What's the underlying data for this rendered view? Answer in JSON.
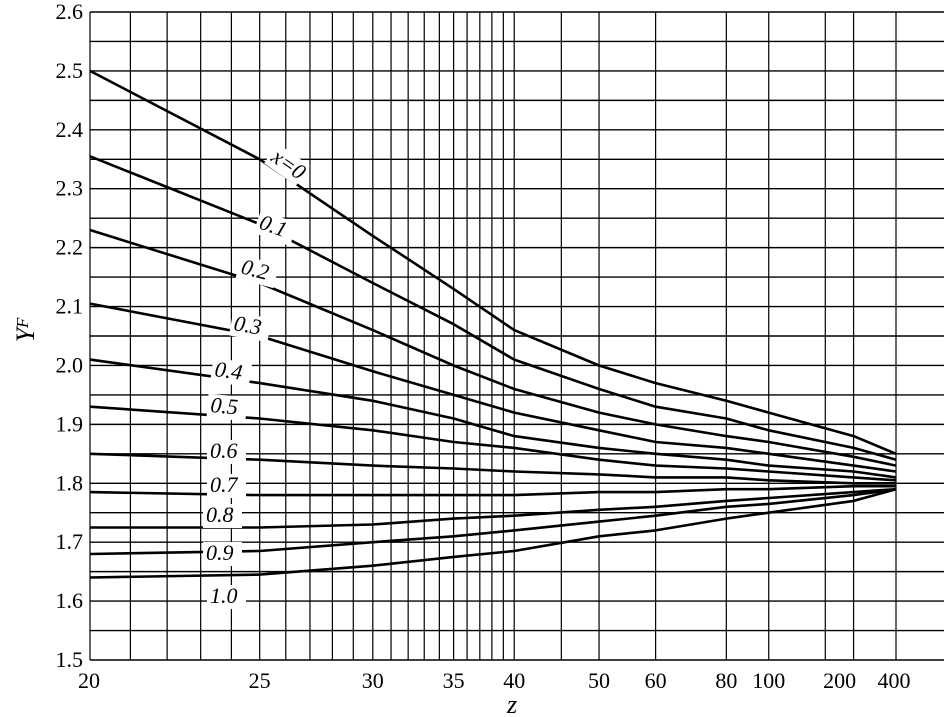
{
  "chart_data": {
    "type": "line",
    "title": "",
    "xlabel": "z",
    "ylabel": "Y",
    "ylabel_sub": "F",
    "ylim": [
      1.5,
      2.6
    ],
    "yticks": [
      "1.5",
      "1.6",
      "1.7",
      "1.8",
      "1.9",
      "2.0",
      "2.1",
      "2.2",
      "2.3",
      "2.4",
      "2.5",
      "2.6"
    ],
    "xticks": [
      "20",
      "25",
      "30",
      "35",
      "40",
      "50",
      "60",
      "80",
      "100",
      "200",
      "400"
    ],
    "x_scale": "reciprocal",
    "grid": true,
    "x": [
      20,
      25,
      30,
      35,
      40,
      50,
      60,
      80,
      100,
      200,
      400
    ],
    "series": [
      {
        "name": "x=0",
        "values": [
          2.5,
          2.35,
          2.22,
          2.13,
          2.06,
          2.0,
          1.97,
          1.94,
          1.92,
          1.88,
          1.85
        ]
      },
      {
        "name": "0.1",
        "values": [
          2.355,
          2.24,
          2.14,
          2.07,
          2.01,
          1.96,
          1.93,
          1.91,
          1.89,
          1.86,
          1.84
        ]
      },
      {
        "name": "0.2",
        "values": [
          2.23,
          2.14,
          2.06,
          2.0,
          1.96,
          1.92,
          1.9,
          1.88,
          1.87,
          1.845,
          1.83
        ]
      },
      {
        "name": "0.3",
        "values": [
          2.105,
          2.05,
          1.99,
          1.95,
          1.92,
          1.89,
          1.87,
          1.86,
          1.85,
          1.83,
          1.82
        ]
      },
      {
        "name": "0.4",
        "values": [
          2.01,
          1.97,
          1.94,
          1.91,
          1.88,
          1.86,
          1.85,
          1.84,
          1.83,
          1.82,
          1.81
        ]
      },
      {
        "name": "0.5",
        "values": [
          1.93,
          1.91,
          1.89,
          1.87,
          1.86,
          1.84,
          1.83,
          1.825,
          1.82,
          1.81,
          1.805
        ]
      },
      {
        "name": "0.6",
        "values": [
          1.85,
          1.84,
          1.83,
          1.825,
          1.82,
          1.815,
          1.81,
          1.81,
          1.805,
          1.8,
          1.8
        ]
      },
      {
        "name": "0.7",
        "values": [
          1.785,
          1.78,
          1.78,
          1.78,
          1.78,
          1.785,
          1.785,
          1.79,
          1.79,
          1.795,
          1.795
        ]
      },
      {
        "name": "0.8",
        "values": [
          1.725,
          1.725,
          1.73,
          1.74,
          1.745,
          1.755,
          1.76,
          1.77,
          1.775,
          1.785,
          1.79
        ]
      },
      {
        "name": "0.9",
        "values": [
          1.68,
          1.685,
          1.7,
          1.71,
          1.72,
          1.735,
          1.745,
          1.76,
          1.765,
          1.78,
          1.79
        ]
      },
      {
        "name": "1.0",
        "values": [
          1.64,
          1.645,
          1.66,
          1.675,
          1.685,
          1.71,
          1.72,
          1.74,
          1.75,
          1.77,
          1.79
        ]
      }
    ],
    "curve_labels": [
      "x=0",
      "0.1",
      "0.2",
      "0.3",
      "0.4",
      "0.5",
      "0.6",
      "0.7",
      "0.8",
      "0.9",
      "1.0"
    ]
  }
}
